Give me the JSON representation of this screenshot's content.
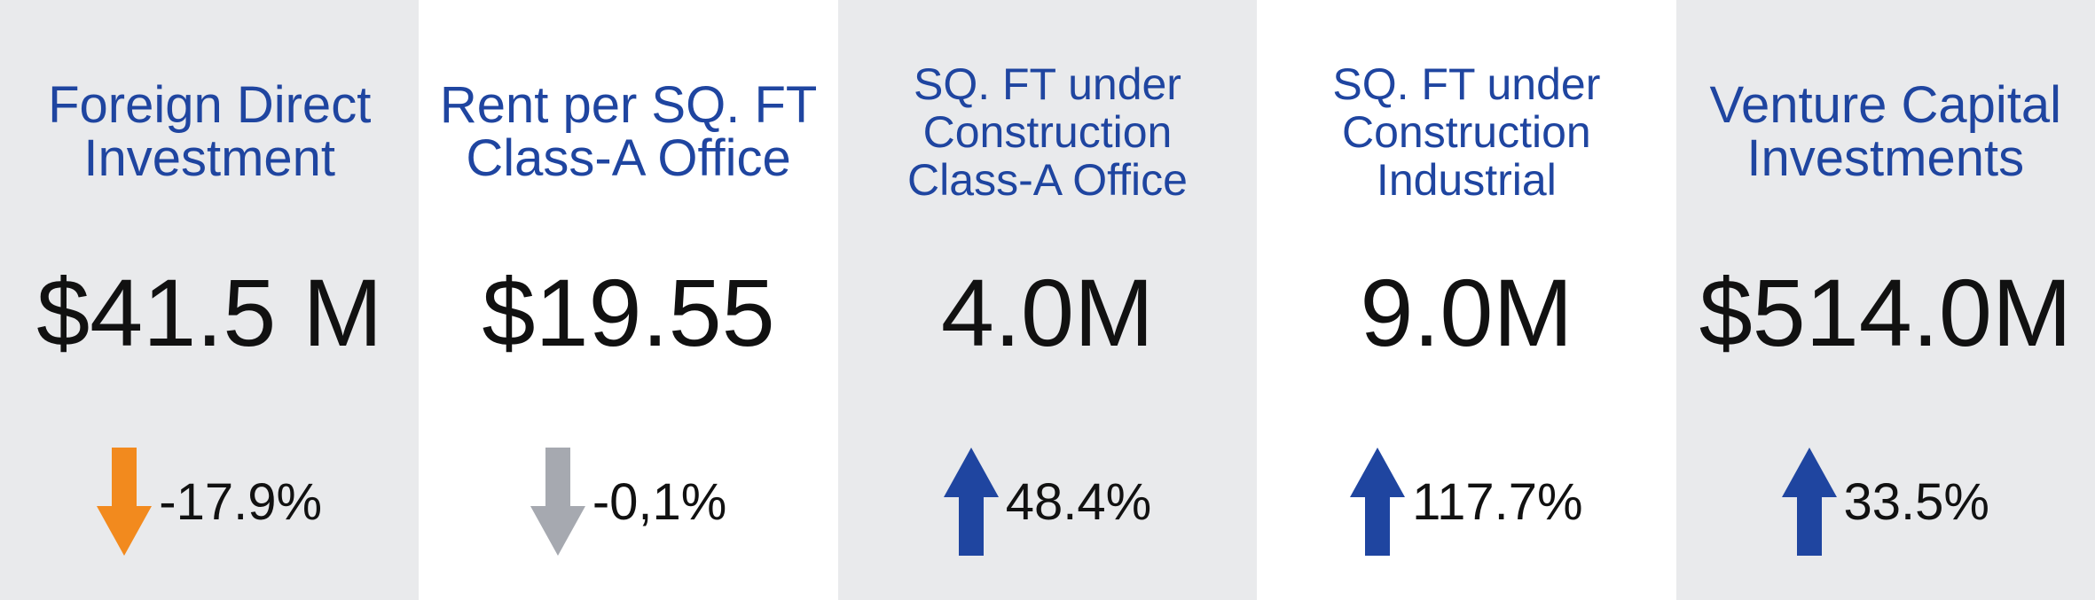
{
  "cards": [
    {
      "title_lines": [
        "Foreign Direct",
        "Investment"
      ],
      "value": "$41.5 M",
      "change": "-17.9%",
      "direction": "down",
      "arrow_color": "#f28a1e",
      "background": "#e9eaec"
    },
    {
      "title_lines": [
        "Rent per SQ. FT",
        "Class-A Office"
      ],
      "value": "$19.55",
      "change": "-0,1%",
      "direction": "down",
      "arrow_color": "#a6a9b0",
      "background": "#ffffff"
    },
    {
      "title_lines": [
        "SQ. FT under",
        "Construction",
        "Class-A Office"
      ],
      "value": "4.0M",
      "change": "48.4%",
      "direction": "up",
      "arrow_color": "#1f45a0",
      "background": "#e9eaec"
    },
    {
      "title_lines": [
        "SQ. FT under",
        "Construction",
        "Industrial"
      ],
      "value": "9.0M",
      "change": "117.7%",
      "direction": "up",
      "arrow_color": "#1f45a0",
      "background": "#ffffff"
    },
    {
      "title_lines": [
        "Venture Capital",
        "Investments"
      ],
      "value": "$514.0M",
      "change": "33.5%",
      "direction": "up",
      "arrow_color": "#1f45a0",
      "background": "#e9eaec"
    }
  ]
}
